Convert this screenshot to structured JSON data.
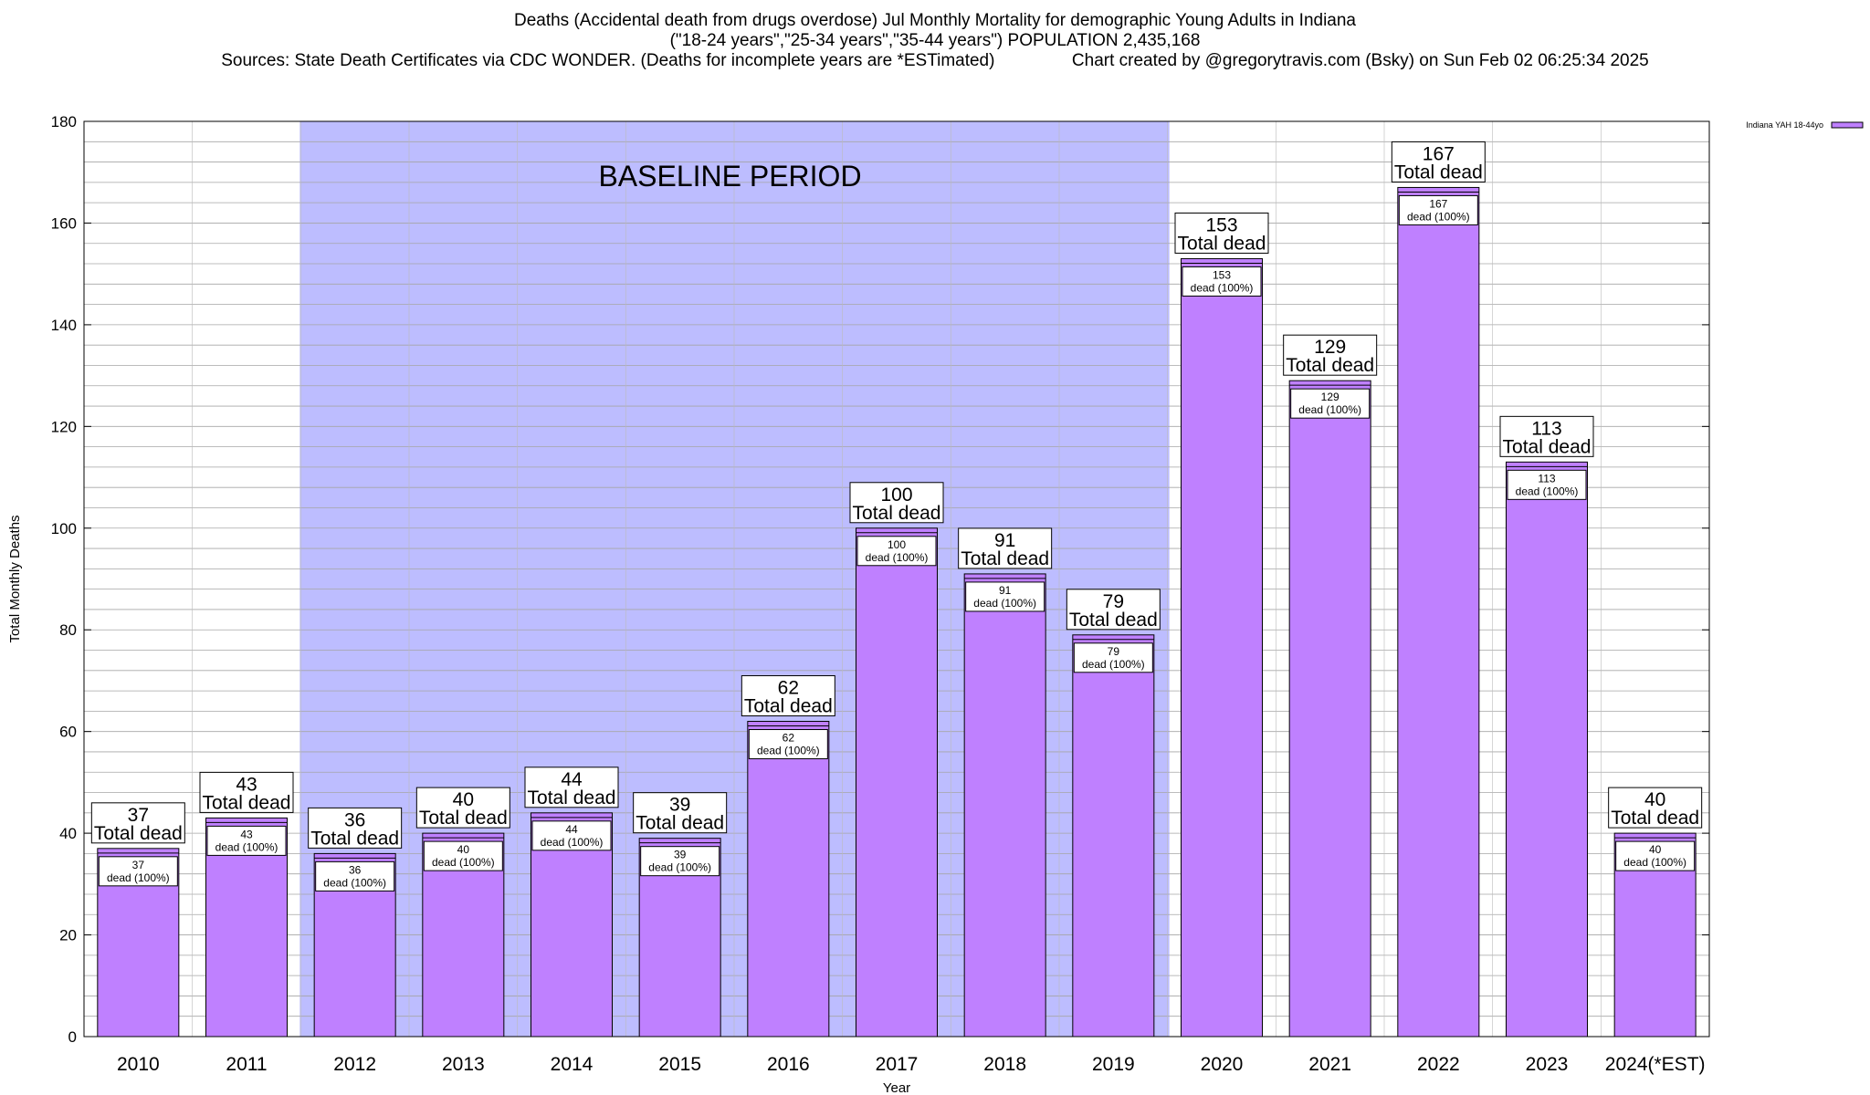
{
  "header": {
    "line1": "Deaths (Accidental death from drugs overdose) Jul Monthly Mortality for demographic Young Adults in Indiana",
    "line2": "(\"18-24 years\",\"25-34 years\",\"35-44 years\") POPULATION 2,435,168",
    "line3": "Sources: State Death Certificates via CDC WONDER. (Deaths for incomplete years are *ESTimated)                Chart created by @gregorytravis.com (Bsky) on Sun Feb 02 06:25:34 2025"
  },
  "chart_data": {
    "type": "bar",
    "title": "Deaths (Accidental death from drugs overdose) Jul Monthly Mortality for demographic Young Adults in Indiana",
    "xlabel": "Year",
    "ylabel": "Total Monthly Deaths",
    "ylim": [
      0,
      180
    ],
    "yticks": [
      0,
      20,
      40,
      60,
      80,
      100,
      120,
      140,
      160,
      180
    ],
    "grid": true,
    "legend_position": "top-right",
    "categories": [
      "2010",
      "2011",
      "2012",
      "2013",
      "2014",
      "2015",
      "2016",
      "2017",
      "2018",
      "2019",
      "2020",
      "2021",
      "2022",
      "2023",
      "2024(*EST)"
    ],
    "series": [
      {
        "name": "Indiana YAH 18-44yo",
        "color": "#bf80ff",
        "values": [
          37,
          43,
          36,
          40,
          44,
          39,
          62,
          100,
          91,
          79,
          153,
          129,
          167,
          113,
          40
        ]
      }
    ],
    "total_label": "Total dead",
    "inner_label": "dead (100%)",
    "annotations": [
      {
        "text": "BASELINE PERIOD",
        "from_category": "2012",
        "to_category": "2019",
        "color": "#bdbdff"
      }
    ]
  }
}
